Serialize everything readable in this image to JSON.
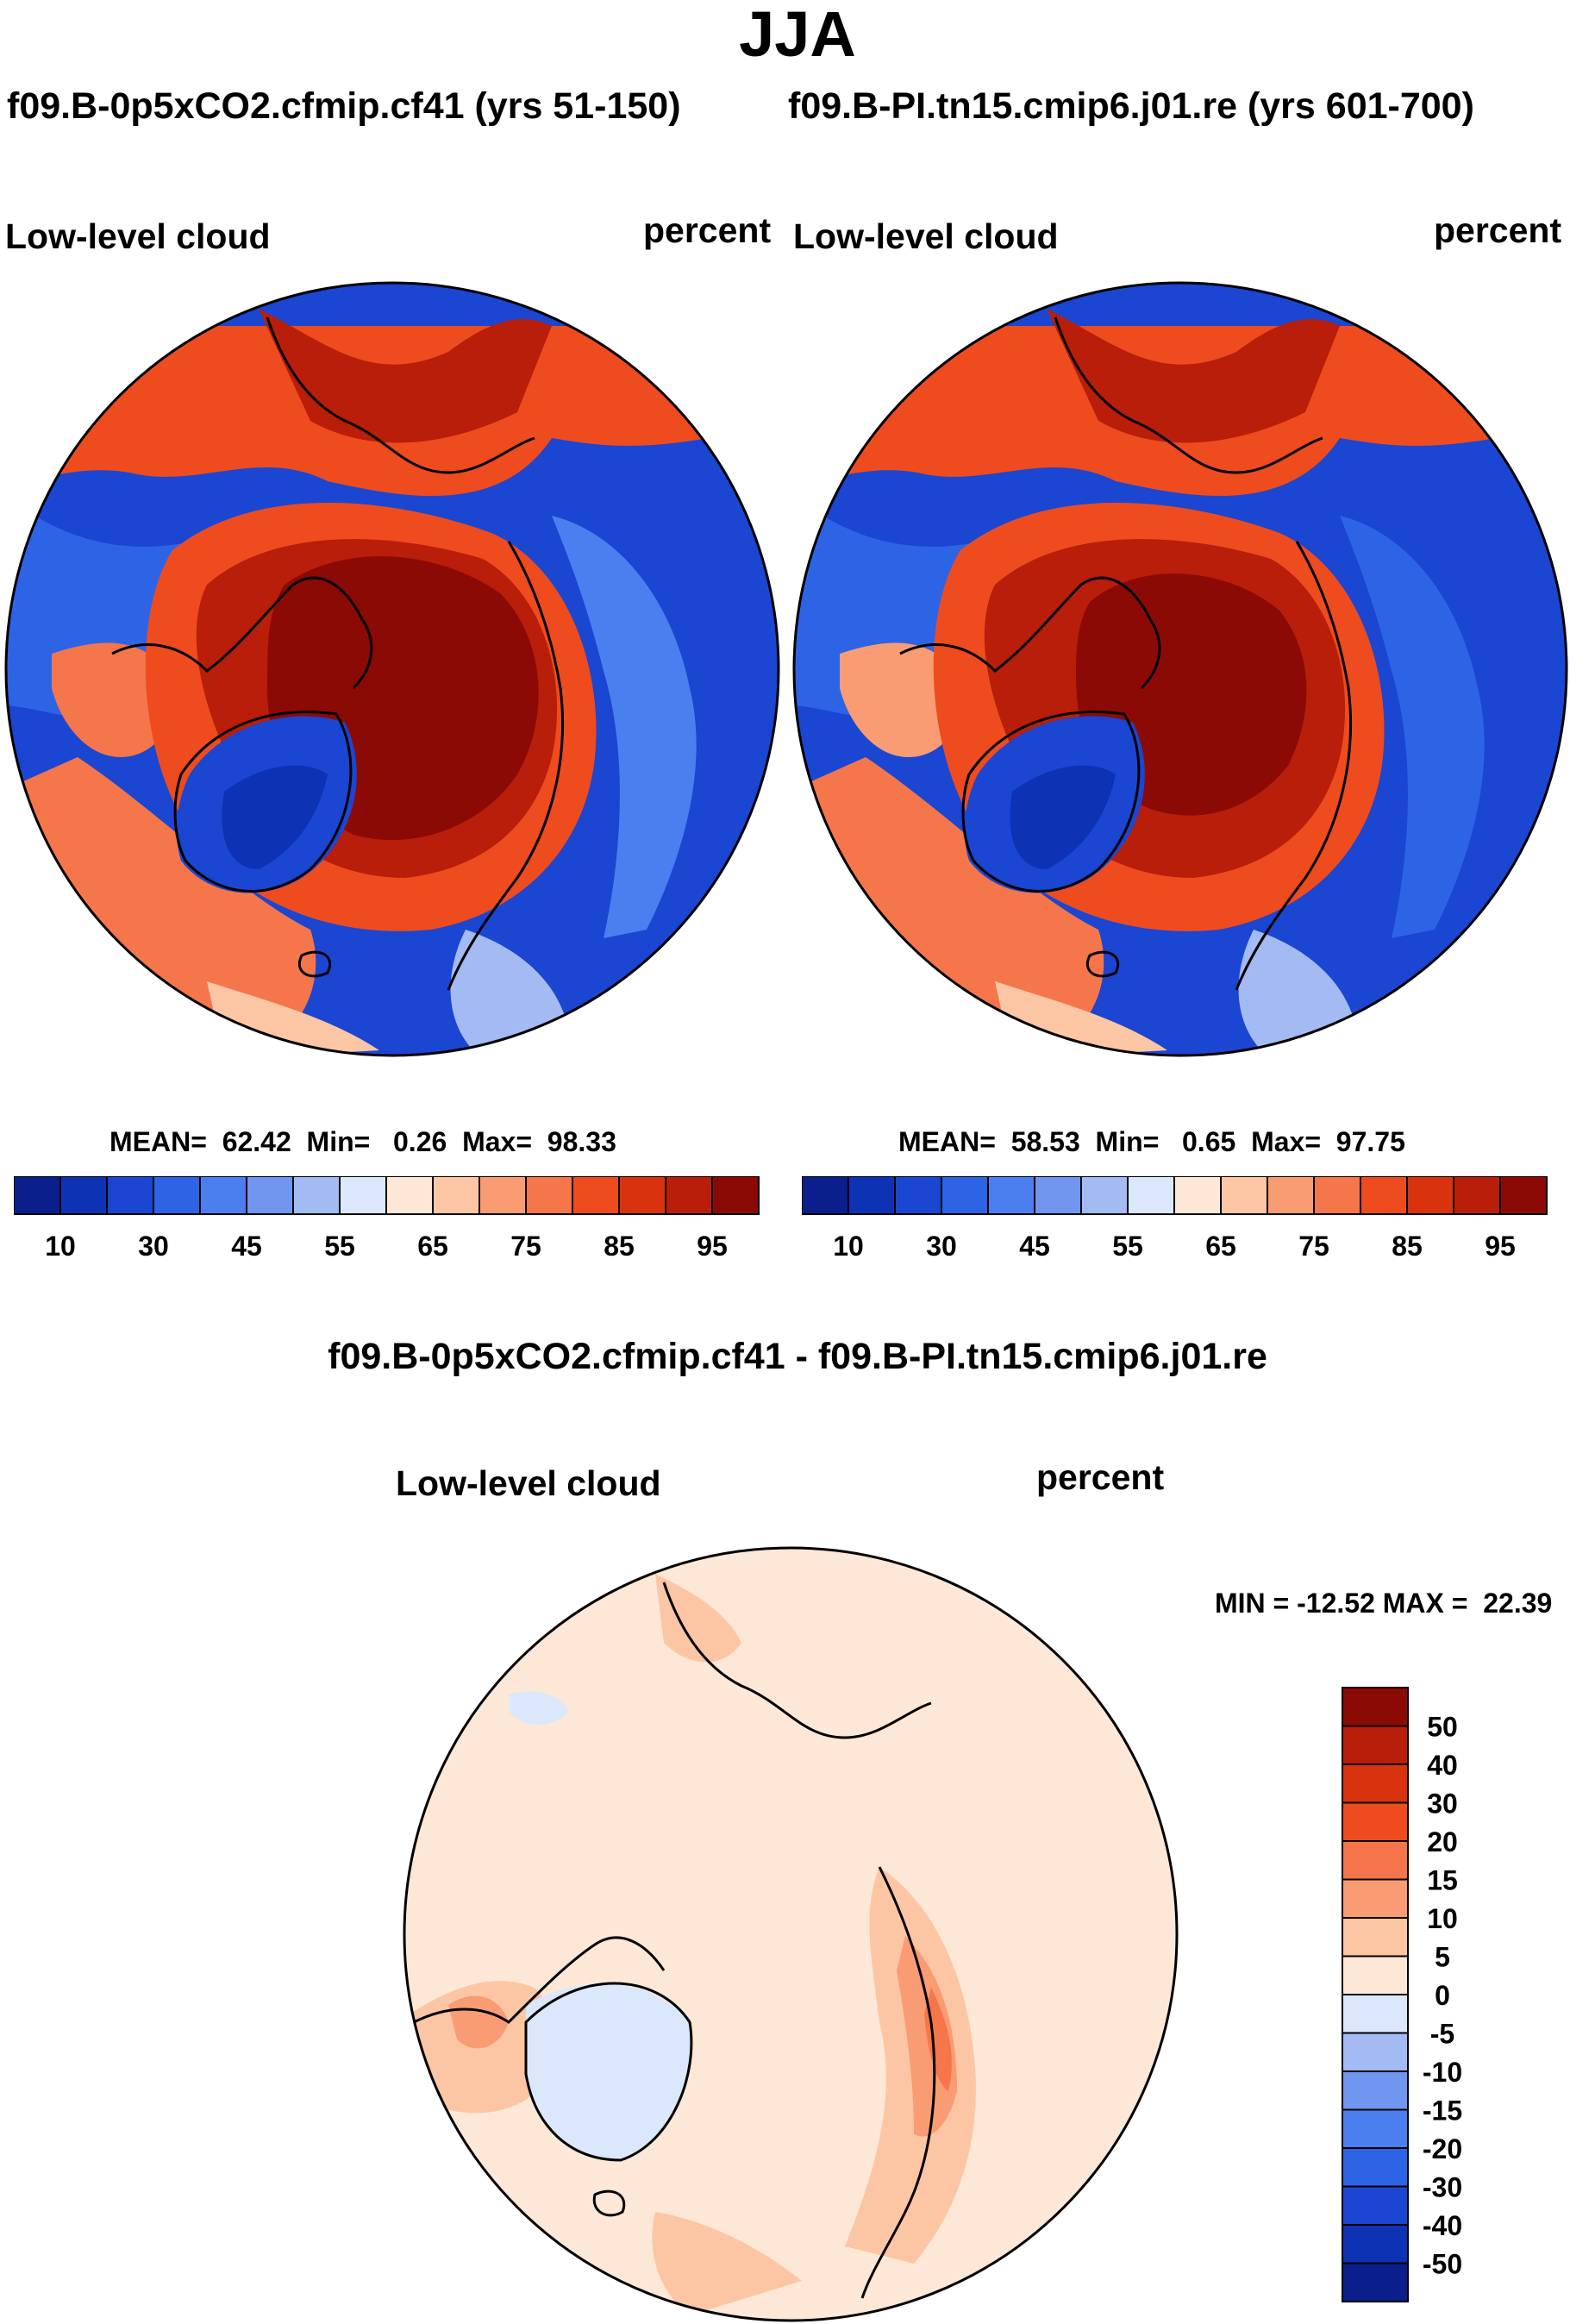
{
  "title": "JJA",
  "panels": [
    {
      "case_label": "f09.B-0p5xCO2.cfmip.cf41 (yrs 51-150)",
      "field_label": "Low-level cloud",
      "units": "percent",
      "stats": {
        "mean_label": "MEAN=",
        "mean": "62.42",
        "min_label": "Min=",
        "min": "0.26",
        "max_label": "Max=",
        "max": "98.33"
      }
    },
    {
      "case_label": "f09.B-PI.tn15.cmip6.j01.re (yrs 601-700)",
      "field_label": "Low-level cloud",
      "units": "percent",
      "stats": {
        "mean_label": "MEAN=",
        "mean": "58.53",
        "min_label": "Min=",
        "min": "0.65",
        "max_label": "Max=",
        "max": "97.75"
      }
    }
  ],
  "diff_panel": {
    "case_label": "f09.B-0p5xCO2.cfmip.cf41 - f09.B-PI.tn15.cmip6.j01.re",
    "field_label": "Low-level cloud",
    "units": "percent",
    "minmax_text": "MIN = -12.52 MAX =  22.39"
  },
  "colorbar_abs": {
    "colors": [
      "#0a1e8c",
      "#0d32b4",
      "#1a46d2",
      "#2d64e6",
      "#4b7ff0",
      "#7196f0",
      "#a3baf2",
      "#dbe8fb",
      "#fde8d7",
      "#fcc6a4",
      "#f99c73",
      "#f5764a",
      "#ee4c1e",
      "#d9320f",
      "#b81e0a",
      "#8c0a06"
    ],
    "tick_labels": [
      "10",
      "30",
      "45",
      "55",
      "65",
      "75",
      "85",
      "95"
    ]
  },
  "colorbar_diff": {
    "colors": [
      "#8c0a06",
      "#b81e0a",
      "#d9320f",
      "#ee4c1e",
      "#f5764a",
      "#f99c73",
      "#fcc6a4",
      "#fde8d7",
      "#dbe8fb",
      "#a3baf2",
      "#7196f0",
      "#4b7ff0",
      "#2d64e6",
      "#1a46d2",
      "#0d32b4",
      "#0a1e8c"
    ],
    "tick_labels": [
      "50",
      "40",
      "30",
      "20",
      "15",
      "10",
      "5",
      "0",
      "-5",
      "-10",
      "-15",
      "-20",
      "-30",
      "-40",
      "-50"
    ]
  },
  "chart_data": [
    {
      "type": "heatmap",
      "projection": "north polar stereographic",
      "title": "Low-level cloud",
      "subtitle": "f09.B-0p5xCO2.cfmip.cf41 (yrs 51-150)",
      "units": "percent",
      "season": "JJA",
      "mean": 62.42,
      "min": 0.26,
      "max": 98.33,
      "contour_levels": [
        10,
        15,
        20,
        25,
        30,
        35,
        40,
        45,
        50,
        55,
        60,
        65,
        70,
        75,
        80,
        85,
        90,
        95
      ]
    },
    {
      "type": "heatmap",
      "projection": "north polar stereographic",
      "title": "Low-level cloud",
      "subtitle": "f09.B-PI.tn15.cmip6.j01.re (yrs 601-700)",
      "units": "percent",
      "season": "JJA",
      "mean": 58.53,
      "min": 0.65,
      "max": 97.75,
      "contour_levels": [
        10,
        15,
        20,
        25,
        30,
        35,
        40,
        45,
        50,
        55,
        60,
        65,
        70,
        75,
        80,
        85,
        90,
        95
      ]
    },
    {
      "type": "heatmap",
      "projection": "north polar stereographic",
      "title": "Low-level cloud",
      "subtitle": "f09.B-0p5xCO2.cfmip.cf41 - f09.B-PI.tn15.cmip6.j01.re",
      "units": "percent",
      "min": -12.52,
      "max": 22.39,
      "contour_levels": [
        -50,
        -40,
        -30,
        -20,
        -15,
        -10,
        -5,
        0,
        5,
        10,
        15,
        20,
        30,
        40,
        50
      ]
    }
  ]
}
